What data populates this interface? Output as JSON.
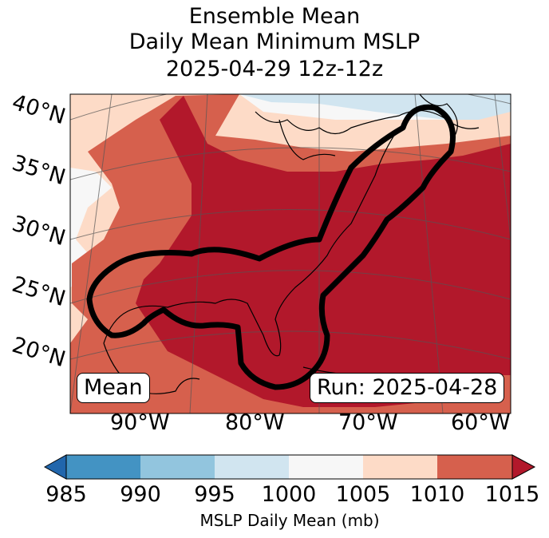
{
  "title": {
    "line1": "Ensemble Mean",
    "line2": "Daily Mean Minimum MSLP",
    "line3": "2025-04-29 12z-12z"
  },
  "map": {
    "lat_labels": [
      "40°N",
      "35°N",
      "30°N",
      "25°N",
      "20°N"
    ],
    "lon_labels": [
      "90°W",
      "80°W",
      "70°W",
      "60°W"
    ],
    "mean_label": "Mean",
    "run_label": "Run: 2025-04-28"
  },
  "colorbar": {
    "ticks": [
      "985",
      "990",
      "995",
      "1000",
      "1005",
      "1010",
      "1015"
    ],
    "label": "MSLP Daily Mean (mb)",
    "colors": {
      "lt985": "#2166ac",
      "985-990": "#4393c3",
      "990-995": "#92c5de",
      "995-1000": "#d1e5f0",
      "1000-1005": "#f7f7f7",
      "1005-1010": "#fddbc7",
      "1010-1015": "#d6604d",
      "gt1015": "#b2182b"
    }
  }
}
